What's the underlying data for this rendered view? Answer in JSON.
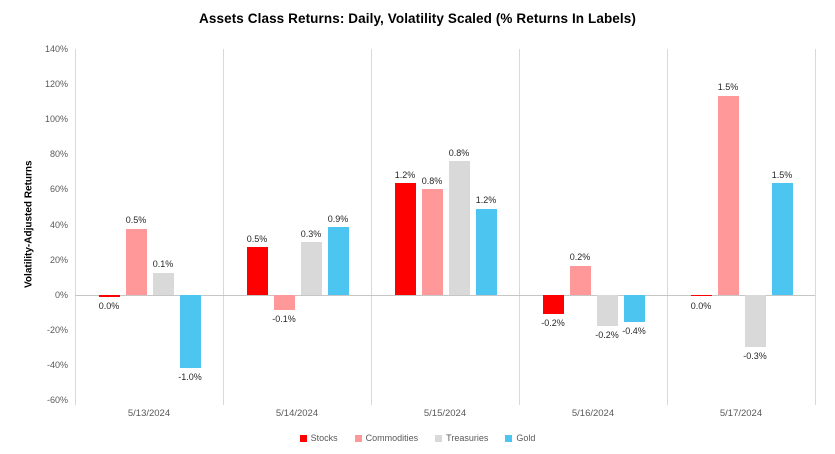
{
  "chart_data": {
    "type": "bar",
    "title": "Assets Class Returns: Daily, Volatility Scaled (% Returns In Labels)",
    "ylabel": "Volatility-Adjusted Returns",
    "xlabel": "",
    "ylim": [
      -60,
      140
    ],
    "ytick_step": 20,
    "ytick_labels": [
      "140%",
      "120%",
      "100%",
      "80%",
      "60%",
      "40%",
      "20%",
      "0%",
      "-20%",
      "-40%",
      "-60%"
    ],
    "grid": "vertical category separators only, light gray; zero baseline shown",
    "legend_position": "bottom",
    "categories": [
      "5/13/2024",
      "5/14/2024",
      "5/15/2024",
      "5/16/2024",
      "5/17/2024"
    ],
    "series": [
      {
        "name": "Stocks",
        "color": "#ff0000",
        "values": [
          -1.5,
          27,
          63.5,
          -11,
          -1
        ],
        "return_labels": [
          "0.0%",
          "0.5%",
          "1.2%",
          "-0.2%",
          "0.0%"
        ]
      },
      {
        "name": "Commodities",
        "color": "#ff9999",
        "values": [
          37.5,
          -8.5,
          60,
          16.5,
          113.5
        ],
        "return_labels": [
          "0.5%",
          "-0.1%",
          "0.8%",
          "0.2%",
          "1.5%"
        ]
      },
      {
        "name": "Treasuries",
        "color": "#d9d9d9",
        "values": [
          12.5,
          30,
          76,
          -17.7,
          -30
        ],
        "return_labels": [
          "0.1%",
          "0.3%",
          "0.8%",
          "-0.2%",
          "-0.3%"
        ]
      },
      {
        "name": "Gold",
        "color": "#4dc5f1",
        "values": [
          -42,
          38.5,
          49,
          -15.6,
          63.5
        ],
        "return_labels": [
          "-1.0%",
          "0.9%",
          "1.2%",
          "-0.4%",
          "1.5%"
        ]
      }
    ]
  },
  "colors": {
    "background": "#ffffff",
    "title_text": "#000000",
    "axis_text": "#595959",
    "value_label_text": "#262626",
    "separator_line": "#d9d9d9",
    "zero_line": "#c6c6c6"
  }
}
